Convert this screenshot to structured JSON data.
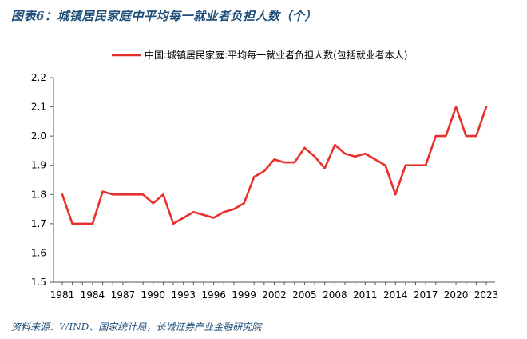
{
  "figure": {
    "title": "图表6：城镇居民家庭中平均每一就业者负担人数（个）",
    "source": "资料来源：WIND、国家统计局，长城证券产业金融研究院"
  },
  "chart_data": {
    "type": "line",
    "title": "",
    "xlabel": "",
    "ylabel": "",
    "ylim": [
      1.5,
      2.2
    ],
    "xlim": [
      1981,
      2023
    ],
    "x_ticks": [
      1981,
      1984,
      1987,
      1990,
      1993,
      1996,
      1999,
      2002,
      2005,
      2008,
      2011,
      2014,
      2017,
      2020,
      2023
    ],
    "y_ticks": [
      1.5,
      1.6,
      1.7,
      1.8,
      1.9,
      2.0,
      2.1,
      2.2
    ],
    "legend_position": "top",
    "grid": false,
    "series": [
      {
        "name": "中国:城镇居民家庭:平均每一就业者负担人数(包括就业者本人)",
        "color": "#e8302a",
        "x": [
          1981,
          1982,
          1983,
          1984,
          1985,
          1986,
          1987,
          1988,
          1989,
          1990,
          1991,
          1992,
          1993,
          1994,
          1995,
          1996,
          1997,
          1998,
          1999,
          2000,
          2001,
          2002,
          2003,
          2004,
          2005,
          2006,
          2007,
          2008,
          2009,
          2010,
          2011,
          2012,
          2013,
          2014,
          2015,
          2016,
          2017,
          2018,
          2019,
          2020,
          2021,
          2022,
          2023
        ],
        "values": [
          1.8,
          1.7,
          1.7,
          1.7,
          1.81,
          1.8,
          1.8,
          1.8,
          1.8,
          1.77,
          1.8,
          1.7,
          1.72,
          1.74,
          1.73,
          1.72,
          1.74,
          1.75,
          1.77,
          1.86,
          1.88,
          1.92,
          1.91,
          1.91,
          1.96,
          1.93,
          1.89,
          1.97,
          1.94,
          1.93,
          1.94,
          1.92,
          1.9,
          1.8,
          1.9,
          1.9,
          1.9,
          2.0,
          2.0,
          2.1,
          2.0,
          2.0,
          2.1
        ]
      }
    ]
  }
}
